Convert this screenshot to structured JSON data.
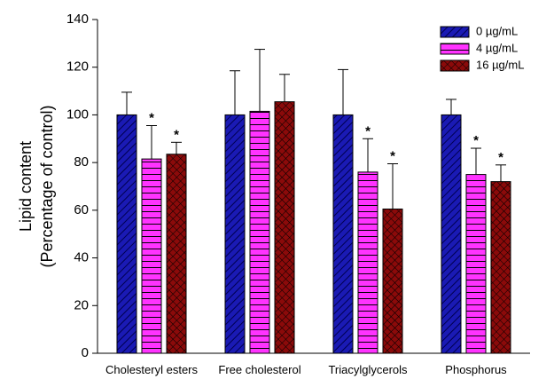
{
  "chart_data": {
    "type": "bar",
    "title": "",
    "xlabel": "",
    "ylabel_lines": [
      "Lipid content",
      "(Percentage of control)"
    ],
    "ylim": [
      0,
      140
    ],
    "yticks": [
      0,
      20,
      40,
      60,
      80,
      100,
      120,
      140
    ],
    "categories": [
      "Cholesteryl esters",
      "Free cholesterol",
      "Triacylglycerols",
      "Phosphorus"
    ],
    "legend_position": "top-right",
    "grid": false,
    "series": [
      {
        "name": "0 µg/mL",
        "color": "#1a1ab4",
        "pattern": "diagonal-hatch",
        "values": [
          100,
          100,
          100,
          100
        ],
        "errors": [
          9.5,
          18.5,
          19,
          6.5
        ],
        "significant": [
          false,
          false,
          false,
          false
        ]
      },
      {
        "name": "4 µg/mL",
        "color": "#ff33ff",
        "pattern": "horizontal-lines",
        "values": [
          81.5,
          101.5,
          76,
          75
        ],
        "errors": [
          14,
          26,
          14,
          11
        ],
        "significant": [
          true,
          false,
          true,
          true
        ]
      },
      {
        "name": "16 µg/mL",
        "color": "#8b0a0a",
        "pattern": "crosshatch",
        "values": [
          83.5,
          105.5,
          60.5,
          72
        ],
        "errors": [
          5,
          11.5,
          19,
          7
        ],
        "significant": [
          true,
          false,
          true,
          true
        ]
      }
    ],
    "significance_marker": "*"
  }
}
